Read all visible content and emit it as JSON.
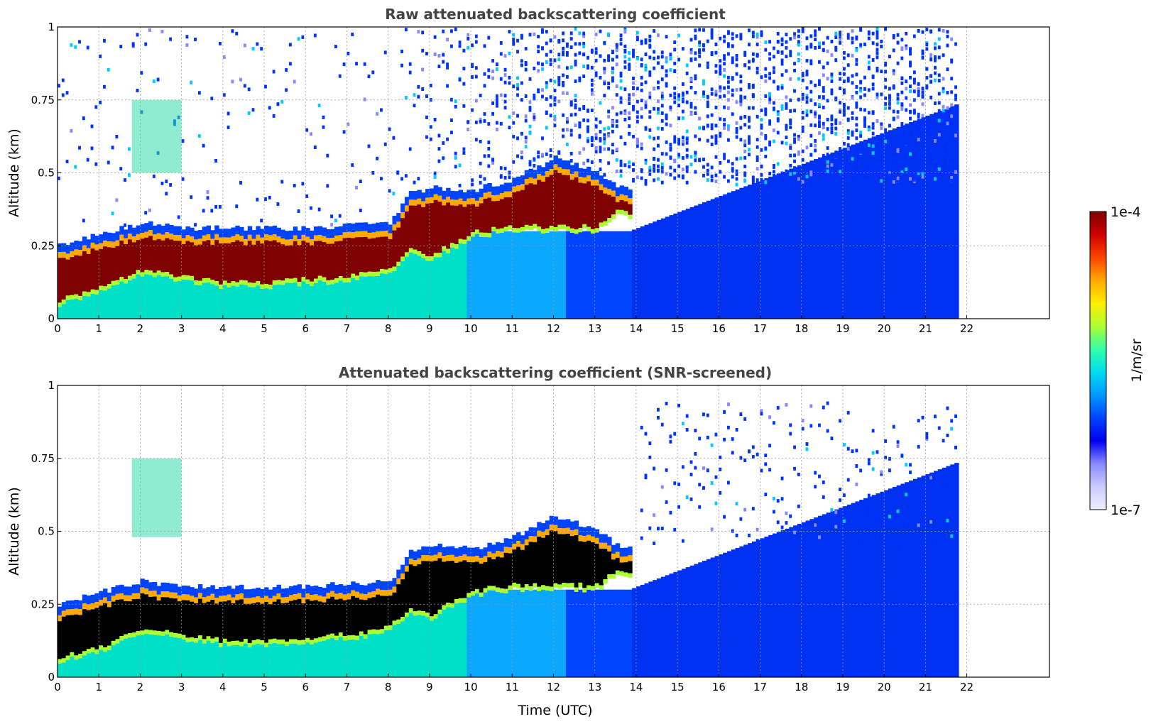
{
  "figure": {
    "xlabel": "Time (UTC)",
    "colorbar": {
      "label": "1/m/sr",
      "min_label": "1e-7",
      "max_label": "1e-4",
      "scale": "log",
      "range": [
        1e-07,
        0.0001
      ],
      "colormap": "jet",
      "low_color": "#e8e8ff",
      "colors": [
        "#eeeeff",
        "#ccccff",
        "#8888ff",
        "#0000ee",
        "#0044ff",
        "#0099ff",
        "#00ddee",
        "#33ffaa",
        "#aaff33",
        "#ffee00",
        "#ffaa00",
        "#ff4400",
        "#cc0000",
        "#7f0000"
      ]
    }
  },
  "chart_data": [
    {
      "type": "heatmap",
      "title": "Raw attenuated backscattering coefficient",
      "xlabel": "",
      "ylabel": "Altitude (km)",
      "xlim": [
        0,
        24
      ],
      "ylim": [
        0,
        1
      ],
      "xticks": [
        "0",
        "1",
        "2",
        "3",
        "4",
        "5",
        "6",
        "7",
        "8",
        "9",
        "10",
        "11",
        "12",
        "13",
        "14",
        "15",
        "16",
        "17",
        "18",
        "19",
        "20",
        "21",
        "22"
      ],
      "yticks": [
        {
          "value": 0,
          "label": "0"
        },
        {
          "value": 0.25,
          "label": "0.25"
        },
        {
          "value": 0.5,
          "label": "0.5"
        },
        {
          "value": 0.75,
          "label": "0.75"
        },
        {
          "value": 1,
          "label": "1"
        }
      ],
      "grid": true,
      "data_end_time": 21.8,
      "cloud_layer": {
        "unit": "km",
        "time": [
          0,
          1,
          2,
          3,
          4,
          5,
          6,
          7,
          8,
          8.5,
          9,
          10,
          11,
          12,
          13,
          13.5
        ],
        "base": [
          0.05,
          0.09,
          0.15,
          0.13,
          0.11,
          0.11,
          0.12,
          0.13,
          0.16,
          0.22,
          0.2,
          0.28,
          0.3,
          0.3,
          0.3,
          0.35
        ],
        "top": [
          0.22,
          0.26,
          0.3,
          0.28,
          0.28,
          0.28,
          0.28,
          0.29,
          0.3,
          0.4,
          0.42,
          0.41,
          0.45,
          0.52,
          0.48,
          0.42
        ]
      },
      "elevated_feature": {
        "time_start": 1.8,
        "time_end": 3.0,
        "alt_start": 0.5,
        "alt_end": 0.75
      }
    },
    {
      "type": "heatmap",
      "title": "Attenuated backscattering coefficient (SNR-screened)",
      "xlabel": "Time (UTC)",
      "ylabel": "Altitude (km)",
      "xlim": [
        0,
        24
      ],
      "ylim": [
        0,
        1
      ],
      "xticks": [
        "0",
        "1",
        "2",
        "3",
        "4",
        "5",
        "6",
        "7",
        "8",
        "9",
        "10",
        "11",
        "12",
        "13",
        "14",
        "15",
        "16",
        "17",
        "18",
        "19",
        "20",
        "21",
        "22"
      ],
      "yticks": [
        {
          "value": 0,
          "label": "0"
        },
        {
          "value": 0.25,
          "label": "0.25"
        },
        {
          "value": 0.5,
          "label": "0.5"
        },
        {
          "value": 0.75,
          "label": "0.75"
        },
        {
          "value": 1,
          "label": "1"
        }
      ],
      "grid": true,
      "data_end_time": 21.8,
      "saturated_color": "#000000",
      "cloud_layer": {
        "unit": "km",
        "time": [
          0,
          1,
          2,
          3,
          4,
          5,
          6,
          7,
          8,
          8.5,
          9,
          10,
          11,
          12,
          13,
          13.5
        ],
        "base": [
          0.05,
          0.09,
          0.15,
          0.13,
          0.11,
          0.11,
          0.12,
          0.13,
          0.16,
          0.22,
          0.2,
          0.28,
          0.3,
          0.3,
          0.3,
          0.35
        ],
        "top": [
          0.22,
          0.26,
          0.3,
          0.28,
          0.28,
          0.28,
          0.28,
          0.29,
          0.3,
          0.4,
          0.42,
          0.41,
          0.45,
          0.52,
          0.48,
          0.42
        ]
      },
      "elevated_feature": {
        "time_start": 1.8,
        "time_end": 3.0,
        "alt_start": 0.48,
        "alt_end": 0.75
      }
    }
  ]
}
